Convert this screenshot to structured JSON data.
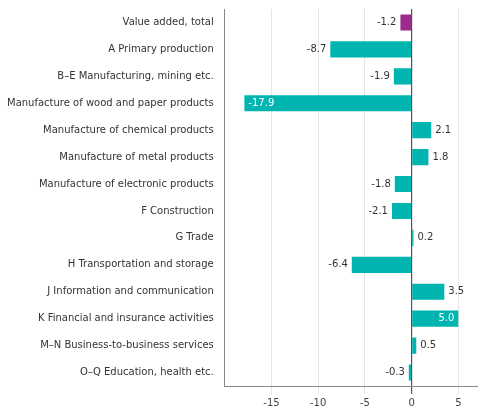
{
  "chart_data": {
    "type": "bar",
    "orientation": "horizontal",
    "categories": [
      "Value added, total",
      "A Primary production",
      "B–E Manufacturing, mining etc.",
      "Manufacture of wood and paper products",
      "Manufacture of chemical products",
      "Manufacture of metal products",
      "Manufacture of electronic products",
      "F Construction",
      "G Trade",
      "H Transportation and storage",
      "J Information and communication",
      "K Financial and insurance activities",
      "M–N Business-to-business services",
      "O–Q Education, health etc."
    ],
    "values": [
      -1.2,
      -8.7,
      -1.9,
      -17.9,
      2.1,
      1.8,
      -1.8,
      -2.1,
      0.2,
      -6.4,
      3.5,
      5.0,
      0.5,
      -0.3
    ],
    "value_labels": [
      "-1.2",
      "-8.7",
      "-1.9",
      "-17.9",
      "2.1",
      "1.8",
      "-1.8",
      "-2.1",
      "0.2",
      "-6.4",
      "3.5",
      "5.0",
      "0.5",
      "-0.3"
    ],
    "data_labels": true,
    "colors": [
      "#9B2C8E",
      "#00B5B0",
      "#00B5B0",
      "#00B5B0",
      "#00B5B0",
      "#00B5B0",
      "#00B5B0",
      "#00B5B0",
      "#00B5B0",
      "#00B5B0",
      "#00B5B0",
      "#00B5B0",
      "#00B5B0",
      "#00B5B0"
    ],
    "xlim": [
      -20,
      7
    ],
    "xticks": [
      -15,
      -10,
      -5,
      0,
      5
    ],
    "grid": true
  }
}
